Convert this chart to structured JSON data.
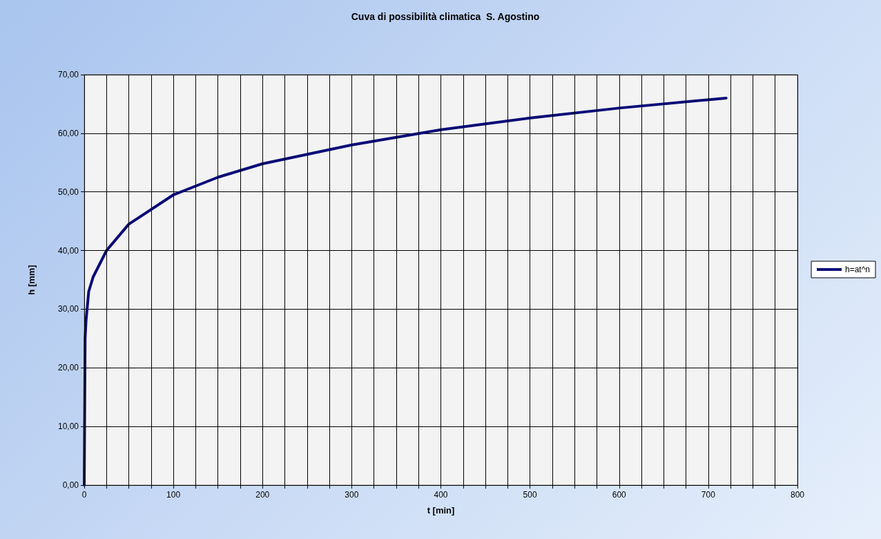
{
  "chart_data": {
    "type": "line",
    "title": "Cuva di possibilità climatica  S. Agostino",
    "xlabel": "t [min]",
    "ylabel": "h [mm]",
    "x": [
      0,
      1,
      2,
      5,
      10,
      25,
      50,
      100,
      150,
      200,
      300,
      400,
      500,
      600,
      720
    ],
    "series": [
      {
        "name": "h=at^n",
        "color": "#0a0a78",
        "values": [
          0,
          25,
          28,
          33,
          35.5,
          40,
          44.5,
          49.5,
          52.5,
          54.8,
          58,
          60.6,
          62.6,
          64.3,
          66
        ]
      }
    ],
    "xlim": [
      0,
      800
    ],
    "xticks": [
      0,
      {
        "value": 25,
        "label": null
      },
      {
        "value": 50,
        "label": null
      },
      {
        "value": 75,
        "label": null
      },
      100,
      {
        "value": 125,
        "label": null
      },
      {
        "value": 150,
        "label": null
      },
      {
        "value": 175,
        "label": null
      },
      200,
      {
        "value": 225,
        "label": null
      },
      {
        "value": 250,
        "label": null
      },
      {
        "value": 275,
        "label": null
      },
      300,
      {
        "value": 325,
        "label": null
      },
      {
        "value": 350,
        "label": null
      },
      {
        "value": 375,
        "label": null
      },
      400,
      {
        "value": 425,
        "label": null
      },
      {
        "value": 450,
        "label": null
      },
      {
        "value": 475,
        "label": null
      },
      500,
      {
        "value": 525,
        "label": null
      },
      {
        "value": 550,
        "label": null
      },
      {
        "value": 575,
        "label": null
      },
      600,
      {
        "value": 625,
        "label": null
      },
      {
        "value": 650,
        "label": null
      },
      {
        "value": 675,
        "label": null
      },
      700,
      {
        "value": 725,
        "label": null
      },
      {
        "value": 750,
        "label": null
      },
      {
        "value": 775,
        "label": null
      },
      800
    ],
    "ylim": [
      0,
      70
    ],
    "yticks": [
      {
        "value": 0,
        "label": "0,00"
      },
      {
        "value": 10,
        "label": "10,00"
      },
      {
        "value": 20,
        "label": "20,00"
      },
      {
        "value": 30,
        "label": "30,00"
      },
      {
        "value": 40,
        "label": "40,00"
      },
      {
        "value": 50,
        "label": "50,00"
      },
      {
        "value": 60,
        "label": "60,00"
      },
      {
        "value": 70,
        "label": "70,00"
      }
    ],
    "grid": true,
    "legend": "right",
    "marker": "none",
    "line_style": "solid"
  }
}
